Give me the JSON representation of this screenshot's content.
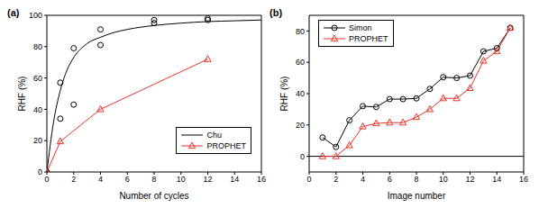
{
  "chart_data": [
    {
      "type": "line",
      "title": "(a)",
      "x_label": "Number of cycles",
      "y_label": "RHF (%)",
      "xlim": [
        0,
        16
      ],
      "xticks": [
        0,
        2,
        4,
        6,
        8,
        10,
        12,
        14,
        16
      ],
      "ylim": [
        0,
        100
      ],
      "yticks": [
        0,
        20,
        40,
        60,
        80,
        100
      ],
      "legend": "lower right",
      "hlines": [],
      "series": [
        {
          "name": "Chu",
          "type": "line",
          "color": "#000000",
          "marker": "none",
          "line_style": "smooth",
          "x": [
            0,
            0.5,
            1,
            1.5,
            2,
            3,
            4,
            5,
            6,
            8,
            10,
            12,
            14,
            16
          ],
          "values": [
            0,
            32,
            52,
            65,
            73,
            82,
            86,
            89,
            91,
            93.5,
            95,
            96,
            96.5,
            97
          ]
        },
        {
          "type": "scatter",
          "color": "#000000",
          "marker": "circle",
          "x": [
            0,
            1,
            1,
            2,
            2,
            4,
            4,
            8,
            8,
            12,
            12
          ],
          "values": [
            0,
            34,
            57,
            43,
            79,
            81,
            91,
            95,
            97,
            97,
            98
          ]
        },
        {
          "name": "PROPHET",
          "type": "line",
          "color": "#e8332a",
          "marker": "triangle",
          "line_style": "solid",
          "x": [
            0,
            1,
            4,
            12
          ],
          "values": [
            0,
            19.5,
            40,
            72
          ]
        }
      ]
    },
    {
      "type": "line",
      "title": "(b)",
      "x_label": "Image number",
      "y_label": "RHF (%)",
      "xlim": [
        0,
        16
      ],
      "xticks": [
        0,
        2,
        4,
        6,
        8,
        10,
        12,
        14,
        16
      ],
      "ylim": [
        -10,
        90
      ],
      "yticks": [
        0,
        20,
        40,
        60,
        80
      ],
      "legend": "upper left",
      "hlines": [
        0
      ],
      "series": [
        {
          "name": "Simon",
          "type": "line",
          "color": "#000000",
          "marker": "circle",
          "line_style": "solid",
          "x": [
            1,
            2,
            3,
            4,
            5,
            6,
            7,
            8,
            9,
            10,
            11,
            12,
            13,
            14,
            15
          ],
          "values": [
            12,
            6,
            23,
            32,
            31.5,
            36.5,
            36.5,
            37,
            43,
            50.5,
            50,
            51.5,
            67,
            69,
            82
          ]
        },
        {
          "name": "PROPHET",
          "type": "line",
          "color": "#e8332a",
          "marker": "triangle",
          "line_style": "solid",
          "x": [
            1,
            2,
            3,
            4,
            5,
            6,
            7,
            8,
            9,
            10,
            11,
            12,
            13,
            14,
            15
          ],
          "values": [
            0,
            0,
            7,
            19,
            21,
            21.5,
            21.5,
            25,
            30,
            37,
            37,
            43.5,
            61,
            67,
            82
          ]
        }
      ]
    }
  ]
}
